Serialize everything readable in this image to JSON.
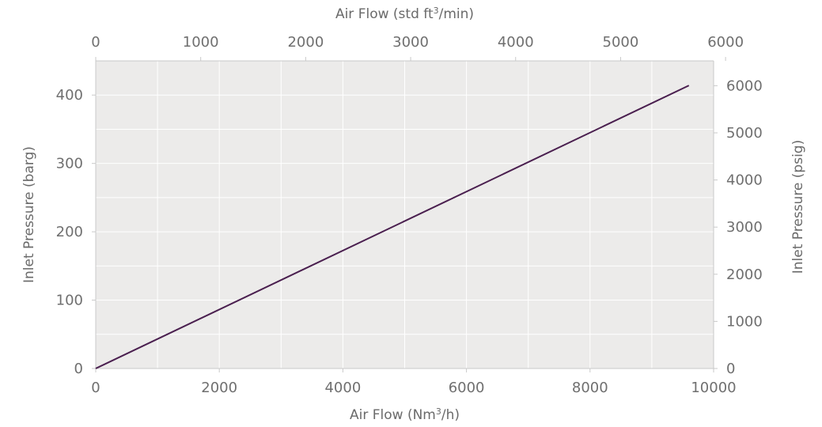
{
  "chart_data": {
    "type": "line",
    "x_bottom": {
      "label_prefix": "Air Flow (Nm",
      "label_sup": "3",
      "label_suffix": "/h)",
      "range": [
        0,
        10000
      ],
      "ticks": [
        "0",
        "2000",
        "4000",
        "6000",
        "8000",
        "10000"
      ]
    },
    "x_top": {
      "label_prefix": "Air Flow (std ft",
      "label_sup": "3",
      "label_suffix": "/min)",
      "range": [
        0,
        5886
      ],
      "ticks": [
        "0",
        "1000",
        "2000",
        "3000",
        "4000",
        "5000",
        "6000"
      ]
    },
    "y_left": {
      "label": "Inlet Pressure (barg)",
      "range": [
        0,
        450
      ],
      "ticks": [
        "0",
        "100",
        "200",
        "300",
        "400"
      ]
    },
    "y_right": {
      "label": "Inlet Pressure (psig)",
      "range": [
        0,
        6527
      ],
      "ticks": [
        "0",
        "1000",
        "2000",
        "3000",
        "4000",
        "5000",
        "6000"
      ]
    },
    "grid": true,
    "series": [
      {
        "color": "#4a1f4f",
        "x": [
          0,
          9600
        ],
        "y": [
          0,
          414
        ]
      }
    ]
  }
}
